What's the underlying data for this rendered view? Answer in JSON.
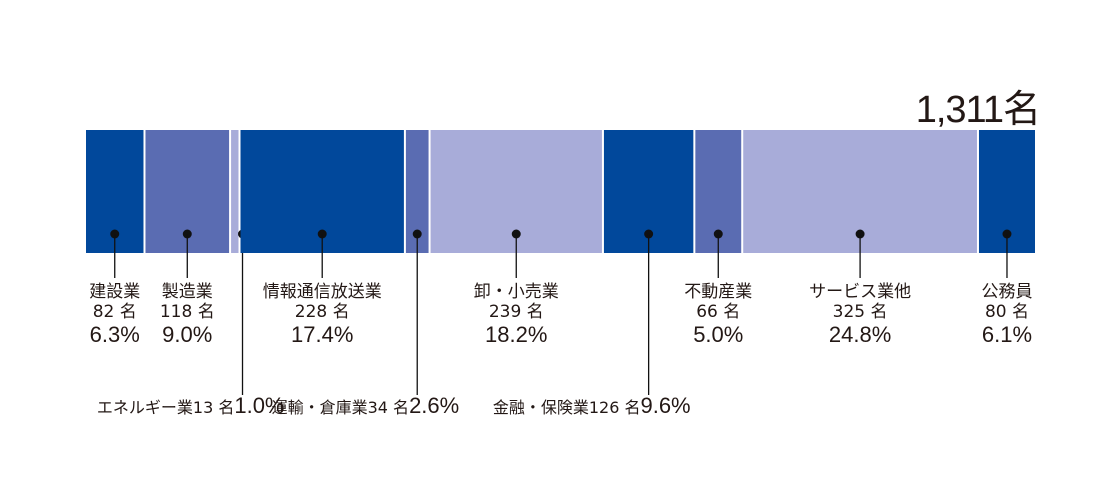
{
  "chart_data": {
    "type": "stacked-bar",
    "total_label": "1,311名",
    "total": 1311,
    "colors": {
      "dark": "#01489b",
      "mid": "#5a6cb2",
      "light": "#a8acd9"
    },
    "segments": [
      {
        "name": "建設業",
        "count_label": "82 名",
        "pct_label": "6.3%",
        "value": 82,
        "pct": 6.3,
        "color": "dark"
      },
      {
        "name": "製造業",
        "count_label": "118 名",
        "pct_label": "9.0%",
        "value": 118,
        "pct": 9.0,
        "color": "mid"
      },
      {
        "name": "エネルギー業",
        "count_label": "13 名",
        "pct_label": "1.0%",
        "value": 13,
        "pct": 1.0,
        "color": "light"
      },
      {
        "name": "情報通信放送業",
        "count_label": "228 名",
        "pct_label": "17.4%",
        "value": 228,
        "pct": 17.4,
        "color": "dark"
      },
      {
        "name": "運輸・倉庫業",
        "count_label": "34 名",
        "pct_label": "2.6%",
        "value": 34,
        "pct": 2.6,
        "color": "mid"
      },
      {
        "name": "卸・小売業",
        "count_label": "239 名",
        "pct_label": "18.2%",
        "value": 239,
        "pct": 18.2,
        "color": "light"
      },
      {
        "name": "金融・保険業",
        "count_label": "126 名",
        "pct_label": "9.6%",
        "value": 126,
        "pct": 9.6,
        "color": "dark"
      },
      {
        "name": "不動産業",
        "count_label": "66 名",
        "pct_label": "5.0%",
        "value": 66,
        "pct": 5.0,
        "color": "mid"
      },
      {
        "name": "サービス業他",
        "count_label": "325 名",
        "pct_label": "24.8%",
        "value": 325,
        "pct": 24.8,
        "color": "light"
      },
      {
        "name": "公務員",
        "count_label": "80 名",
        "pct_label": "6.1%",
        "value": 80,
        "pct": 6.1,
        "color": "dark"
      }
    ]
  }
}
